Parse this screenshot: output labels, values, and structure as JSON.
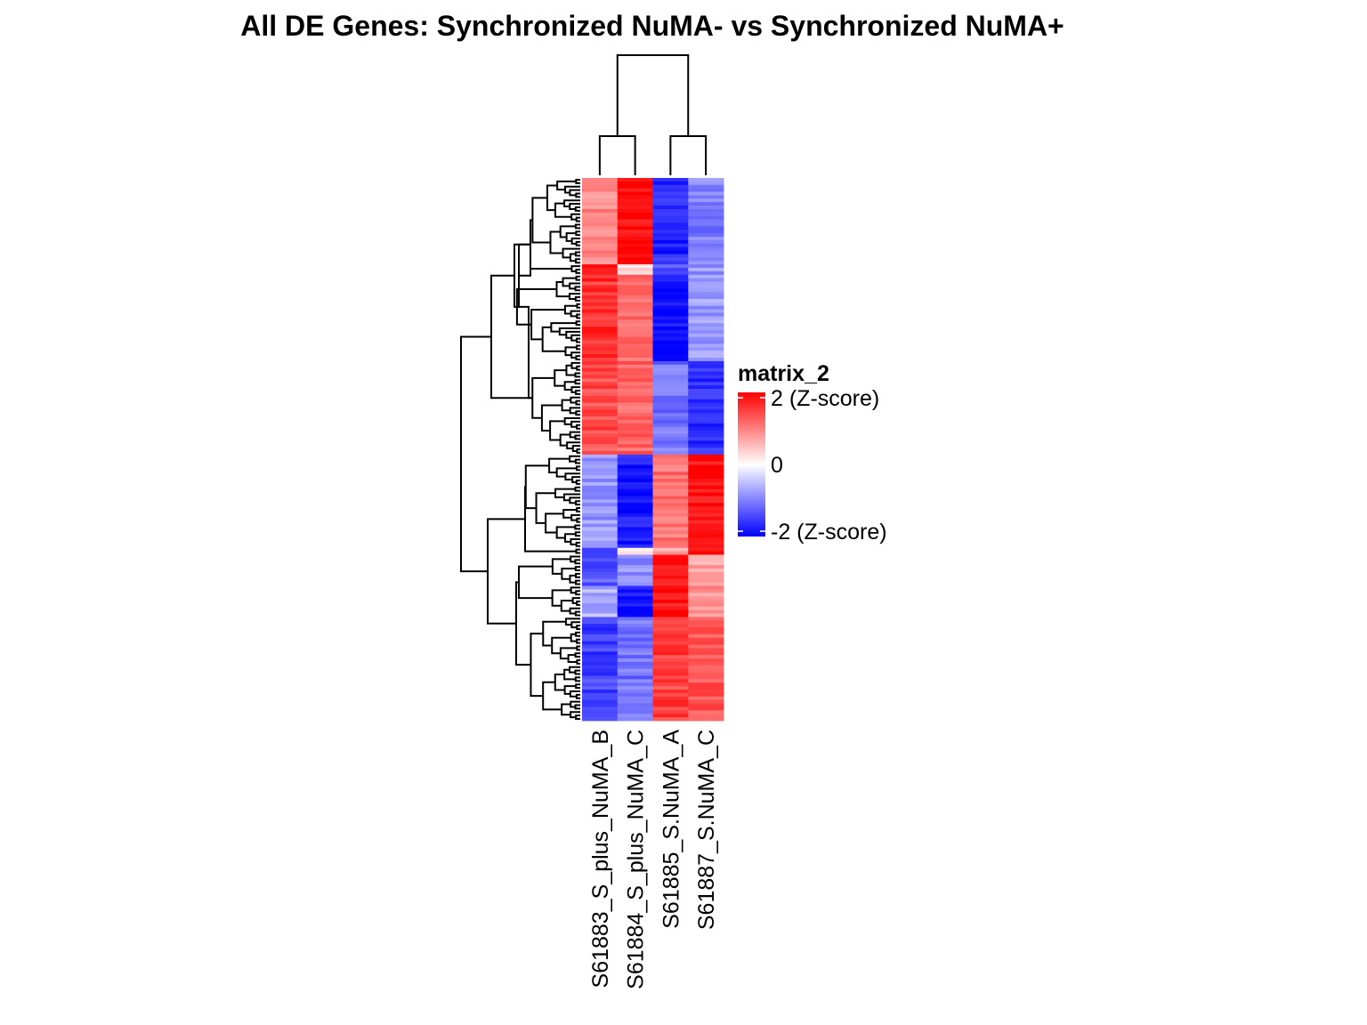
{
  "chart_data": {
    "type": "heatmap",
    "title": "All DE Genes: Synchronized NuMA-  vs  Synchronized NuMA+",
    "columns": [
      "S61883_S_plus_NuMA_B",
      "S61884_S_plus_NuMA_C",
      "S61885_S.NuMA_A",
      "S61887_S.NuMA_C"
    ],
    "legend": {
      "title": "matrix_2",
      "ticks": [
        {
          "value": 2,
          "label": "2 (Z-score)"
        },
        {
          "value": 0,
          "label": "0"
        },
        {
          "value": -2,
          "label": "-2 (Z-score)"
        }
      ],
      "range": [
        -2,
        2
      ],
      "colors": {
        "low": "#0000ff",
        "mid": "#ffffff",
        "high": "#ff0000"
      }
    },
    "column_dendrogram": {
      "pairs": [
        [
          "S61883_S_plus_NuMA_B",
          "S61884_S_plus_NuMA_C"
        ],
        [
          "S61885_S.NuMA_A",
          "S61887_S.NuMA_C"
        ]
      ]
    },
    "row_blocks": [
      {
        "rows": 25,
        "values": [
          0.9,
          1.9,
          -1.7,
          -1.0
        ]
      },
      {
        "rows": 3,
        "values": [
          1.9,
          0.3,
          -1.4,
          -0.8
        ]
      },
      {
        "rows": 25,
        "values": [
          1.6,
          1.2,
          -1.9,
          -0.8
        ]
      },
      {
        "rows": 27,
        "values": [
          1.4,
          1.2,
          -1.1,
          -1.6
        ]
      },
      {
        "rows": 27,
        "values": [
          -0.8,
          -1.8,
          1.1,
          1.9
        ]
      },
      {
        "rows": 2,
        "values": [
          -1.7,
          0.1,
          0.6,
          1.8
        ]
      },
      {
        "rows": 9,
        "values": [
          -1.3,
          -0.9,
          1.8,
          0.7
        ]
      },
      {
        "rows": 9,
        "values": [
          -0.6,
          -1.9,
          1.9,
          0.9
        ]
      },
      {
        "rows": 30,
        "values": [
          -1.5,
          -1.1,
          1.5,
          1.3
        ]
      }
    ]
  }
}
